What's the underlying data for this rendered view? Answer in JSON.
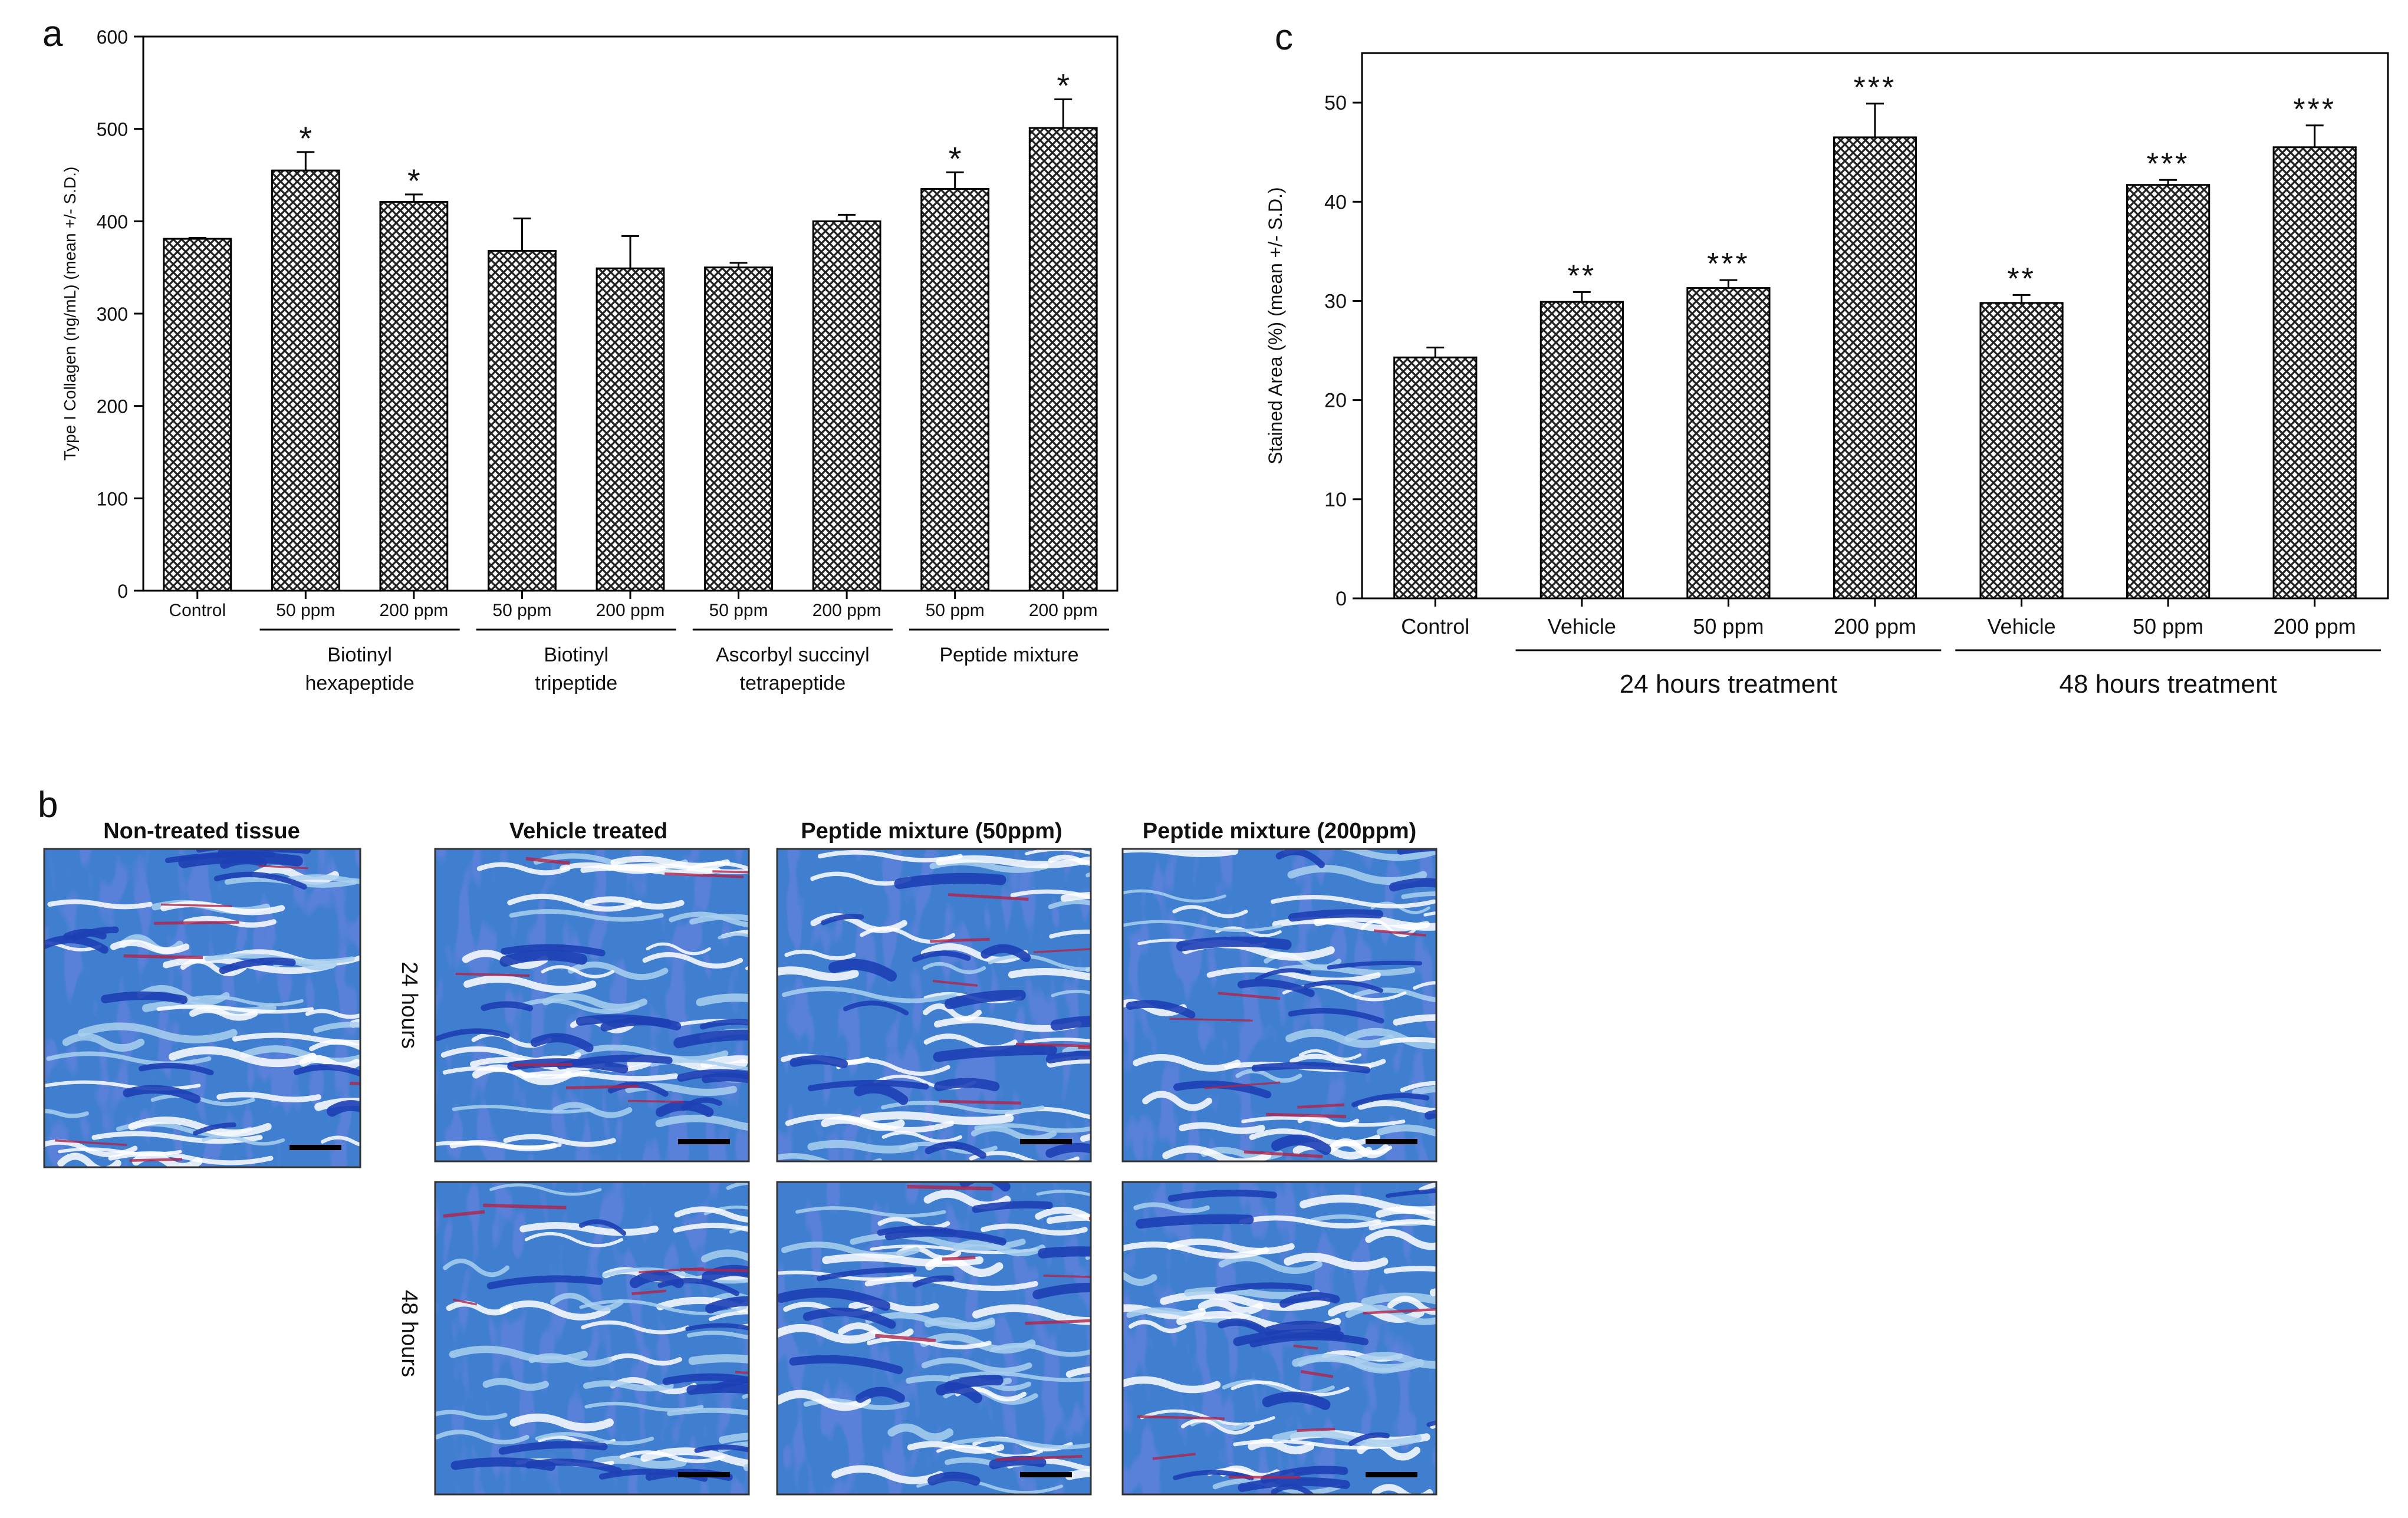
{
  "figure_labels": {
    "a": "a",
    "b": "b",
    "c": "c"
  },
  "colors": {
    "bar_pattern": "#222222",
    "tissue_base": "#3f7fd0",
    "tissue_dark": "#1d3fb4",
    "tissue_light": "#a9d0ef",
    "tissue_red": "#b0244a"
  },
  "chart_data": [
    {
      "id": "panel-a",
      "type": "bar",
      "ylabel": "Type I Collagen (ng/mL) (mean +/- S.D.)",
      "ylim": [
        0,
        600
      ],
      "yticks": [
        0,
        100,
        200,
        300,
        400,
        500,
        600
      ],
      "categories": [
        "Control",
        "50 ppm",
        "200 ppm",
        "50 ppm",
        "200 ppm",
        "50 ppm",
        "200 ppm",
        "50 ppm",
        "200 ppm"
      ],
      "values": [
        381,
        455,
        421,
        368,
        349,
        350,
        400,
        435,
        501
      ],
      "errors": [
        1,
        20,
        8,
        35,
        35,
        5,
        7,
        18,
        31
      ],
      "significance": [
        "",
        "*",
        "*",
        "",
        "",
        "",
        "",
        "*",
        "*"
      ],
      "groups": [
        {
          "lines": [
            "Biotinyl",
            "hexapeptide"
          ],
          "span": [
            1,
            2
          ]
        },
        {
          "lines": [
            "Biotinyl",
            "tripeptide"
          ],
          "span": [
            3,
            4
          ]
        },
        {
          "lines": [
            "Ascorbyl succinyl",
            "tetrapeptide"
          ],
          "span": [
            5,
            6
          ]
        },
        {
          "lines": [
            "Peptide mixture"
          ],
          "span": [
            7,
            8
          ]
        }
      ]
    },
    {
      "id": "panel-c",
      "type": "bar",
      "ylabel": "Stained Area (%) (mean +/- S.D.)",
      "ylim": [
        0,
        55
      ],
      "yticks": [
        0,
        10,
        20,
        30,
        40,
        50
      ],
      "categories": [
        "Control",
        "Vehicle",
        "50 ppm",
        "200 ppm",
        "Vehicle",
        "50 ppm",
        "200 ppm"
      ],
      "values": [
        24.3,
        29.9,
        31.3,
        46.5,
        29.8,
        41.7,
        45.5
      ],
      "errors": [
        1.0,
        1.0,
        0.8,
        3.4,
        0.8,
        0.5,
        2.2
      ],
      "significance": [
        "",
        "**",
        "***",
        "***",
        "**",
        "***",
        "***"
      ],
      "groups": [
        {
          "lines": [
            "24 hours treatment"
          ],
          "span": [
            1,
            3
          ]
        },
        {
          "lines": [
            "48 hours treatment"
          ],
          "span": [
            4,
            6
          ]
        }
      ]
    }
  ],
  "panel_b": {
    "titles": {
      "non_treated": "Non-treated tissue",
      "vehicle": "Vehicle treated",
      "mix50": "Peptide mixture (50ppm)",
      "mix200": "Peptide mixture (200ppm)"
    },
    "row_labels": {
      "h24": "24 hours",
      "h48": "48 hours"
    }
  }
}
